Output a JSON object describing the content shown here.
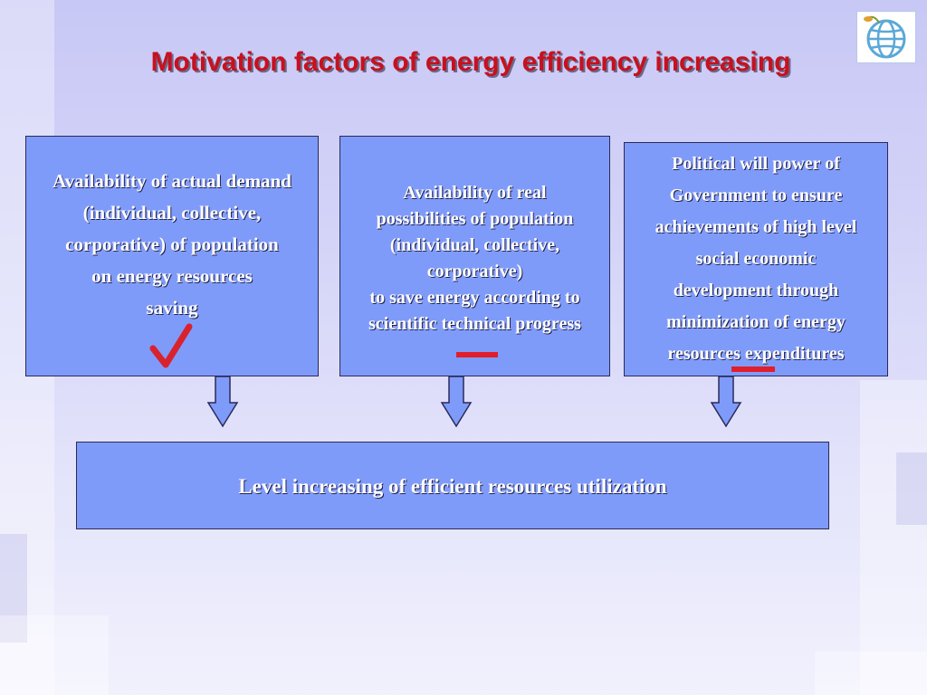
{
  "title": "Motivation factors of energy efficiency increasing",
  "boxes": {
    "demand": {
      "lines": [
        "Availability of actual demand",
        "(individual, collective,",
        "corporative) of population",
        "on energy resources",
        "saving"
      ]
    },
    "possibilities": {
      "lines": [
        "Availability of real",
        "possibilities of population",
        "(individual, collective,",
        "corporative)",
        "to save energy according to",
        "scientific technical progress"
      ]
    },
    "political": {
      "lines": [
        "Political will power of",
        "Government to ensure",
        "achievements of high level",
        "social  economic",
        "development through",
        "minimization of energy",
        "resources expenditures"
      ]
    },
    "result": {
      "text": "Level increasing of efficient resources utilization"
    }
  },
  "marks": {
    "demand": "check-mark",
    "possibilities": "minus-mark",
    "political": "minus-mark"
  },
  "colors": {
    "title": "#c8101e",
    "box_fill": "#7f9bfa",
    "mark": "#e11e2a"
  }
}
